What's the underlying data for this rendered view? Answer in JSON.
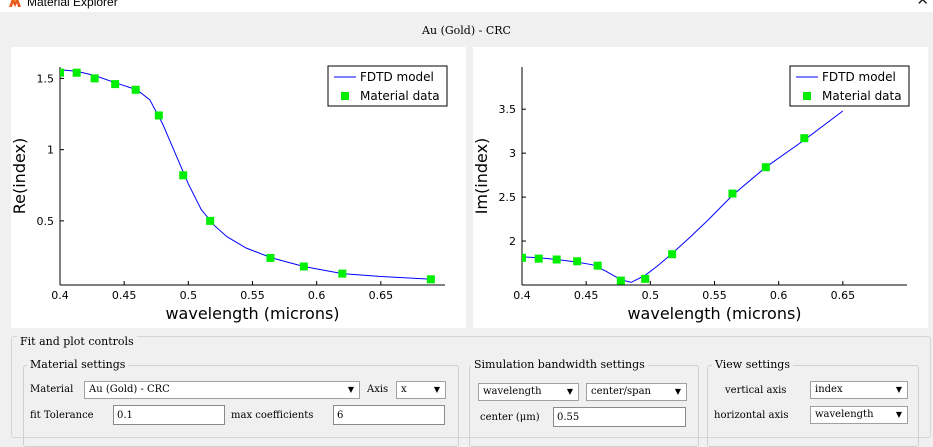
{
  "window": {
    "title": "Material Explorer",
    "close_label": "✕"
  },
  "plot_title": "Au (Gold) - CRC",
  "left_chart": {
    "chart_data": {
      "type": "line",
      "xlabel": "wavelength (microns)",
      "ylabel": "Re(index)",
      "xlim": [
        0.4,
        0.7
      ],
      "ylim": [
        0.05,
        1.58
      ],
      "xticks": [
        "0.4",
        "0.45",
        "0.5",
        "0.55",
        "0.6",
        "0.65"
      ],
      "yticks": [
        "0.5",
        "1",
        "1.5"
      ],
      "legend_placement": "top-right",
      "series": [
        {
          "name": "FDTD model",
          "kind": "line",
          "color": "#0000ff",
          "x": [
            0.4,
            0.413,
            0.427,
            0.443,
            0.46,
            0.47,
            0.48,
            0.49,
            0.5,
            0.51,
            0.52,
            0.53,
            0.545,
            0.565,
            0.59,
            0.62,
            0.65,
            0.69
          ],
          "y": [
            1.56,
            1.55,
            1.52,
            1.47,
            1.42,
            1.35,
            1.18,
            0.97,
            0.76,
            0.58,
            0.47,
            0.39,
            0.31,
            0.24,
            0.18,
            0.13,
            0.11,
            0.09
          ]
        },
        {
          "name": "Material data",
          "kind": "marker",
          "color": "#00ee00",
          "x": [
            0.4,
            0.413,
            0.427,
            0.443,
            0.459,
            0.477,
            0.496,
            0.517,
            0.564,
            0.59,
            0.62,
            0.689
          ],
          "y": [
            1.54,
            1.54,
            1.5,
            1.46,
            1.42,
            1.24,
            0.82,
            0.5,
            0.24,
            0.18,
            0.13,
            0.09
          ]
        }
      ]
    }
  },
  "right_chart": {
    "chart_data": {
      "type": "line",
      "xlabel": "wavelength (microns)",
      "ylabel": "Im(index)",
      "xlim": [
        0.4,
        0.7
      ],
      "ylim": [
        1.5,
        3.98
      ],
      "xticks": [
        "0.4",
        "0.45",
        "0.5",
        "0.55",
        "0.6",
        "0.65"
      ],
      "yticks": [
        "2",
        "2.5",
        "3",
        "3.5"
      ],
      "legend_placement": "top-right",
      "series": [
        {
          "name": "FDTD model",
          "kind": "line",
          "color": "#0000ff",
          "x": [
            0.4,
            0.413,
            0.427,
            0.443,
            0.455,
            0.465,
            0.477,
            0.485,
            0.496,
            0.505,
            0.517,
            0.53,
            0.545,
            0.564,
            0.59,
            0.62,
            0.65
          ],
          "y": [
            1.82,
            1.81,
            1.79,
            1.76,
            1.73,
            1.66,
            1.56,
            1.53,
            1.61,
            1.71,
            1.86,
            2.03,
            2.24,
            2.52,
            2.84,
            3.15,
            3.48
          ]
        },
        {
          "name": "Material data",
          "kind": "marker",
          "color": "#00ee00",
          "x": [
            0.4,
            0.413,
            0.427,
            0.443,
            0.459,
            0.477,
            0.496,
            0.517,
            0.564,
            0.59,
            0.62
          ],
          "y": [
            1.81,
            1.8,
            1.79,
            1.77,
            1.72,
            1.55,
            1.57,
            1.85,
            2.54,
            2.84,
            3.17
          ]
        }
      ]
    }
  },
  "controls": {
    "frame_title": "Fit and plot controls",
    "material_group": {
      "title": "Material settings",
      "material_label": "Material",
      "material_value": "Au (Gold) - CRC",
      "axis_label": "Axis",
      "axis_value": "x",
      "fit_tolerance_label": "fit Tolerance",
      "fit_tolerance_value": "0.1",
      "max_coeff_label": "max coefficients",
      "max_coeff_value": "6"
    },
    "sim_group": {
      "title": "Simulation bandwidth settings",
      "mode_value": "wavelength",
      "span_value": "center/span",
      "center_label": "center (μm)",
      "center_value": "0.55"
    },
    "view_group": {
      "title": "View settings",
      "vertical_label": "vertical axis",
      "vertical_value": "index",
      "horizontal_label": "horizontal axis",
      "horizontal_value": "wavelength"
    }
  }
}
